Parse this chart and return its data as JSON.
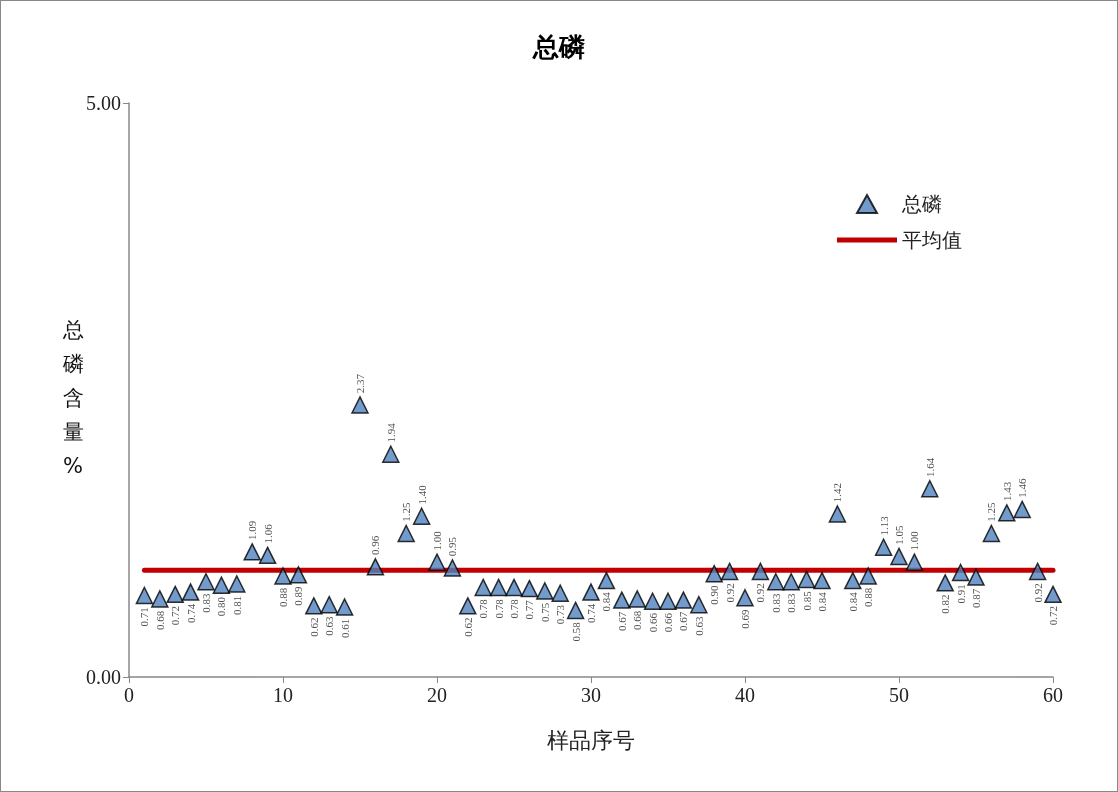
{
  "chart_data": {
    "type": "scatter",
    "title": "总磷",
    "xlabel": "样品序号",
    "ylabel": "总磷含量%",
    "xlim": [
      0,
      60
    ],
    "xticks": [
      0,
      10,
      20,
      30,
      40,
      50,
      60
    ],
    "ylim": [
      0,
      5
    ],
    "yticks": [
      {
        "value": 0,
        "label": "0.00"
      },
      {
        "value": 5,
        "label": "5.00"
      }
    ],
    "grid": false,
    "legend": "top right",
    "marker": "triangle",
    "series": [
      {
        "name": "总磷",
        "type": "scatter",
        "color": "#4f81bd",
        "x": [
          1,
          2,
          3,
          4,
          5,
          6,
          7,
          8,
          9,
          10,
          11,
          12,
          13,
          14,
          15,
          16,
          17,
          18,
          19,
          20,
          21,
          22,
          23,
          24,
          25,
          26,
          27,
          28,
          29,
          30,
          31,
          32,
          33,
          34,
          35,
          36,
          37,
          38,
          39,
          40,
          41,
          42,
          43,
          44,
          45,
          46,
          47,
          48,
          49,
          50,
          51,
          52,
          53,
          54,
          55,
          56,
          57,
          58,
          59,
          60
        ],
        "values": [
          0.71,
          0.68,
          0.72,
          0.74,
          0.83,
          0.8,
          0.81,
          1.09,
          1.06,
          0.88,
          0.89,
          0.62,
          0.63,
          0.61,
          2.37,
          0.96,
          1.94,
          1.25,
          1.4,
          1.0,
          0.95,
          0.62,
          0.78,
          0.78,
          0.78,
          0.77,
          0.75,
          0.73,
          0.58,
          0.74,
          0.84,
          0.67,
          0.68,
          0.66,
          0.66,
          0.67,
          0.63,
          0.9,
          0.92,
          0.69,
          0.92,
          0.83,
          0.83,
          0.85,
          0.84,
          1.42,
          0.84,
          0.88,
          1.13,
          1.05,
          1.0,
          1.64,
          0.82,
          0.91,
          0.87,
          1.25,
          1.43,
          1.46,
          0.92,
          0.72
        ],
        "value_labels": [
          "0.71",
          "0.68",
          "0.72",
          "0.74",
          "0.83",
          "0.80",
          "0.81",
          "1.09",
          "1.06",
          "0.88",
          "0.89",
          "0.62",
          "0.63",
          "0.61",
          "2.37",
          "0.96",
          "1.94",
          "1.25",
          "1.40",
          "1.00",
          "0.95",
          "0.62",
          "0.78",
          "0.78",
          "0.78",
          "0.77",
          "0.75",
          "0.73",
          "0.58",
          "0.74",
          "0.84",
          "0.67",
          "0.68",
          "0.66",
          "0.66",
          "0.67",
          "0.63",
          "0.90",
          "0.92",
          "0.69",
          "0.92",
          "0.83",
          "0.83",
          "0.85",
          "0.84",
          "1.42",
          "0.84",
          "0.88",
          "1.13",
          "1.05",
          "1.00",
          "1.64",
          "0.82",
          "0.91",
          "0.87",
          "1.25",
          "1.43",
          "1.46",
          "0.92",
          "0.72"
        ]
      },
      {
        "name": "平均值",
        "type": "line",
        "color": "#c00000",
        "marker": "none",
        "x": [
          1,
          60
        ],
        "values": [
          0.93,
          0.93
        ]
      }
    ]
  }
}
